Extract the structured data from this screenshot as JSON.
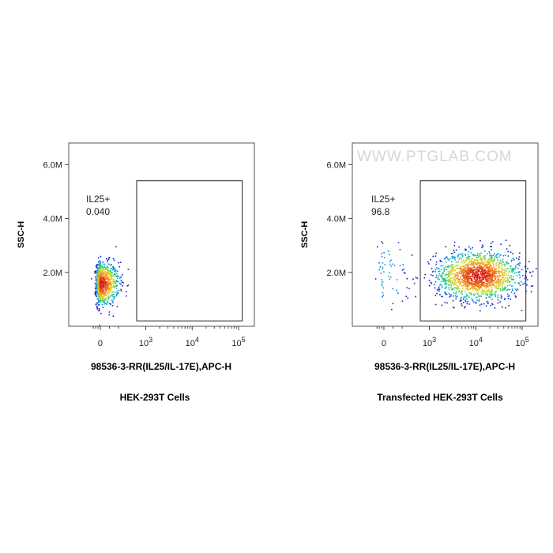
{
  "chart_data": [
    {
      "type": "scatter",
      "subtitle": "HEK-293T Cells",
      "xlabel": "98536-3-RR(IL25/IL-17E),APC-H",
      "ylabel": "SSC-H",
      "x_scale": "biexponential",
      "x_ticks": [
        "0",
        "10^3",
        "10^4",
        "10^5"
      ],
      "y_ticks": [
        "2.0M",
        "4.0M",
        "6.0M"
      ],
      "ylim": [
        0,
        6.8
      ],
      "gate": {
        "label": "IL25+",
        "value": "0.040",
        "x_range": [
          800,
          120000
        ],
        "y_range": [
          0.2,
          5.4
        ]
      },
      "populations": [
        {
          "x_center": 0,
          "x_spread": 200,
          "y_center": 1.6,
          "y_spread": 0.4,
          "share": 0.9996
        }
      ],
      "watermark": ""
    },
    {
      "type": "scatter",
      "subtitle": "Transfected HEK-293T Cells",
      "xlabel": "98536-3-RR(IL25/IL-17E),APC-H",
      "ylabel": "SSC-H",
      "x_scale": "biexponential",
      "x_ticks": [
        "0",
        "10^3",
        "10^4",
        "10^5"
      ],
      "y_ticks": [
        "2.0M",
        "4.0M",
        "6.0M"
      ],
      "ylim": [
        0,
        6.8
      ],
      "gate": {
        "label": "IL25+",
        "value": "96.8",
        "x_range": [
          800,
          120000
        ],
        "y_range": [
          0.2,
          5.4
        ]
      },
      "populations": [
        {
          "x_center": 11000,
          "x_spread": 0.45,
          "y_center": 1.9,
          "y_spread": 0.45,
          "share": 0.968
        },
        {
          "x_center": 0,
          "x_spread": 300,
          "y_center": 2.0,
          "y_spread": 0.55,
          "share": 0.032
        }
      ],
      "watermark": "WWW.PTGLAB.COM"
    }
  ]
}
